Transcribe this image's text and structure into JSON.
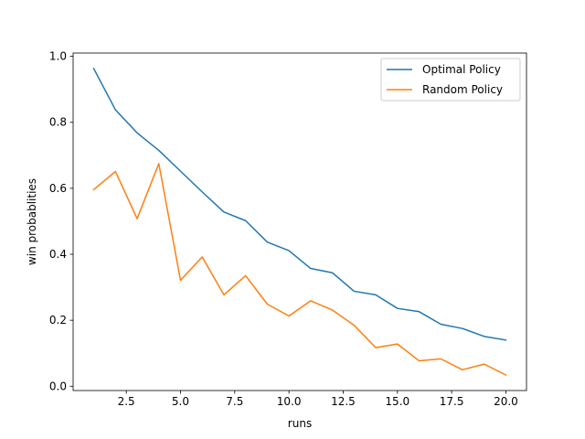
{
  "chart_data": {
    "type": "line",
    "title": "",
    "xlabel": "runs",
    "ylabel": "win probablities",
    "xlim": [
      0.05,
      20.95
    ],
    "ylim": [
      -0.013,
      1.01
    ],
    "xticks": [
      2.5,
      5.0,
      7.5,
      10.0,
      12.5,
      15.0,
      17.5,
      20.0
    ],
    "xtick_labels": [
      "2.5",
      "5.0",
      "7.5",
      "10.0",
      "12.5",
      "15.0",
      "17.5",
      "20.0"
    ],
    "yticks": [
      0.0,
      0.2,
      0.4,
      0.6,
      0.8,
      1.0
    ],
    "ytick_labels": [
      "0.0",
      "0.2",
      "0.4",
      "0.6",
      "0.8",
      "1.0"
    ],
    "grid": false,
    "legend_position": "top-right",
    "x": [
      1,
      2,
      3,
      4,
      5,
      6,
      7,
      8,
      9,
      10,
      11,
      12,
      13,
      14,
      15,
      16,
      17,
      18,
      19,
      20
    ],
    "series": [
      {
        "name": "Optimal Policy",
        "color": "#1f77b4",
        "values": [
          0.963,
          0.838,
          0.768,
          0.715,
          0.652,
          0.589,
          0.528,
          0.502,
          0.437,
          0.411,
          0.357,
          0.344,
          0.288,
          0.277,
          0.236,
          0.226,
          0.188,
          0.175,
          0.151,
          0.14
        ]
      },
      {
        "name": "Random Policy",
        "color": "#ff7f0e",
        "values": [
          0.596,
          0.651,
          0.508,
          0.675,
          0.321,
          0.392,
          0.277,
          0.335,
          0.249,
          0.213,
          0.259,
          0.231,
          0.185,
          0.117,
          0.128,
          0.077,
          0.083,
          0.05,
          0.067,
          0.034
        ]
      }
    ]
  }
}
